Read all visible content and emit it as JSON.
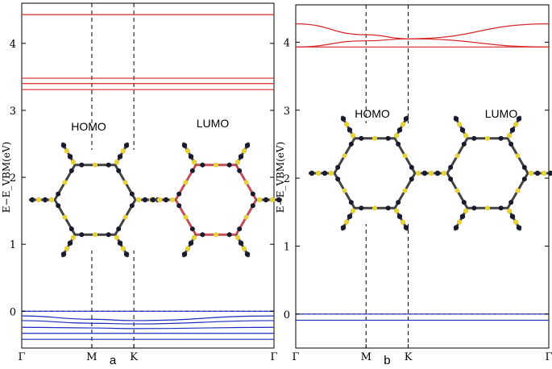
{
  "figure": {
    "panels": [
      {
        "letter": "a",
        "ylabel": "E−E_VBM(eV)",
        "orbital_labels": [
          "HOMO",
          "LUMO"
        ]
      },
      {
        "letter": "b",
        "ylabel": "E−E_VBM(eV)",
        "orbital_labels": [
          "HOMO",
          "LUMO"
        ]
      }
    ]
  },
  "chart_data": [
    {
      "type": "line",
      "panel": "a",
      "title": "",
      "xlabel": "",
      "ylabel": "E−E_VBM(eV)",
      "x_ticks": [
        "Γ",
        "M",
        "K",
        "Γ"
      ],
      "x_tick_positions": [
        0,
        0.5,
        0.8,
        1.8
      ],
      "y_ticks": [
        0,
        1,
        2,
        3,
        4
      ],
      "ylim": [
        -0.55,
        4.6
      ],
      "xlim": [
        0,
        1.8
      ],
      "fermi_level": 0,
      "conduction_bands": [
        {
          "x": [
            0,
            0.5,
            0.8,
            1.8
          ],
          "y": [
            3.31,
            3.31,
            3.31,
            3.31
          ]
        },
        {
          "x": [
            0,
            0.5,
            0.8,
            1.8
          ],
          "y": [
            3.4,
            3.4,
            3.4,
            3.4
          ]
        },
        {
          "x": [
            0,
            0.5,
            0.8,
            1.8
          ],
          "y": [
            3.48,
            3.48,
            3.48,
            3.48
          ]
        },
        {
          "x": [
            0,
            0.5,
            0.8,
            1.8
          ],
          "y": [
            4.43,
            4.43,
            4.43,
            4.43
          ]
        }
      ],
      "valence_bands": [
        {
          "x": [
            0,
            0.5,
            0.8,
            1.8
          ],
          "y": [
            0.0,
            0.0,
            0.0,
            0.0
          ]
        },
        {
          "x": [
            0,
            0.5,
            0.8,
            1.8
          ],
          "y": [
            -0.07,
            -0.12,
            -0.14,
            -0.07
          ]
        },
        {
          "x": [
            0,
            0.5,
            0.8,
            1.8
          ],
          "y": [
            -0.14,
            -0.18,
            -0.19,
            -0.14
          ]
        },
        {
          "x": [
            0,
            0.5,
            0.8,
            1.8
          ],
          "y": [
            -0.24,
            -0.25,
            -0.26,
            -0.24
          ]
        },
        {
          "x": [
            0,
            0.5,
            0.8,
            1.8
          ],
          "y": [
            -0.33,
            -0.33,
            -0.33,
            -0.33
          ]
        },
        {
          "x": [
            0,
            0.5,
            0.8,
            1.8
          ],
          "y": [
            -0.42,
            -0.42,
            -0.42,
            -0.42
          ]
        }
      ],
      "colors": {
        "conduction": "#d62728",
        "valence": "#1f2bbf"
      }
    },
    {
      "type": "line",
      "panel": "b",
      "title": "",
      "xlabel": "",
      "ylabel": "E−E_VBM(eV)",
      "x_ticks": [
        "Γ",
        "M",
        "K",
        "Γ"
      ],
      "x_tick_positions": [
        0,
        0.5,
        0.8,
        1.8
      ],
      "y_ticks": [
        0,
        1,
        2,
        3,
        4
      ],
      "ylim": [
        -0.5,
        4.55
      ],
      "xlim": [
        0,
        1.8
      ],
      "fermi_level": 0,
      "conduction_bands": [
        {
          "x": [
            0,
            0.5,
            0.8,
            1.8
          ],
          "y": [
            3.93,
            3.93,
            3.93,
            3.93
          ]
        },
        {
          "x": [
            0,
            0.5,
            0.8,
            1.8
          ],
          "y": [
            3.93,
            4.02,
            4.05,
            4.27
          ]
        },
        {
          "x": [
            0,
            0.5,
            0.8,
            1.8
          ],
          "y": [
            4.27,
            4.11,
            4.05,
            3.93
          ]
        }
      ],
      "valence_bands": [
        {
          "x": [
            0,
            0.5,
            0.8,
            1.8
          ],
          "y": [
            0.0,
            0.0,
            0.0,
            0.0
          ]
        },
        {
          "x": [
            0,
            0.5,
            0.8,
            1.8
          ],
          "y": [
            -0.09,
            -0.09,
            -0.09,
            -0.09
          ]
        }
      ],
      "colors": {
        "conduction": "#d62728",
        "valence": "#1f2bbf"
      }
    }
  ]
}
